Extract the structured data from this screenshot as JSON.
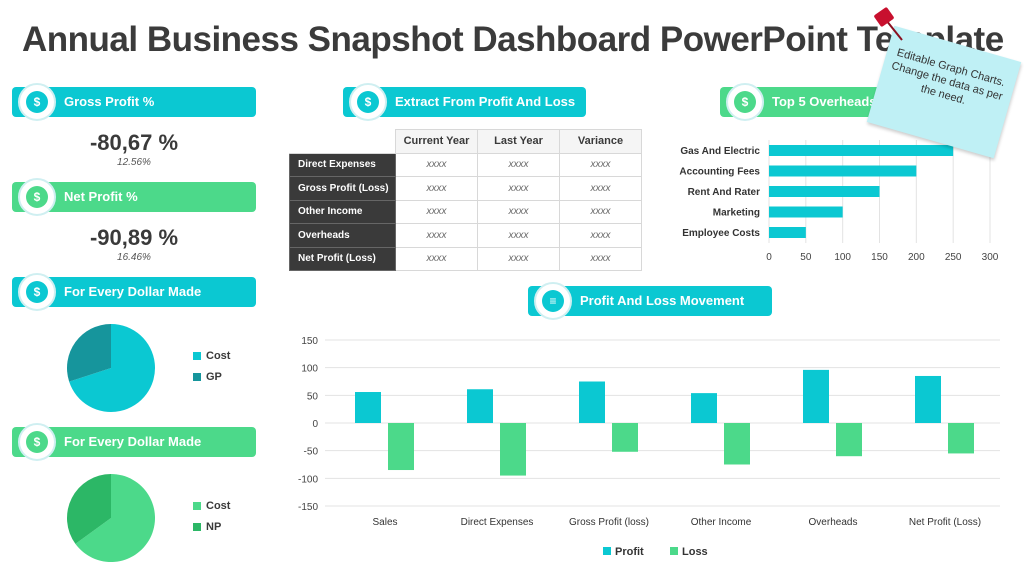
{
  "title": "Annual Business Snapshot Dashboard PowerPoint Template",
  "sticky_note": "Editable Graph Charts. Change the data as per the need.",
  "colors": {
    "cyan": "#0bc8d2",
    "green": "#4cd98a",
    "teal_dark": "#16959c",
    "green_dark": "#2cb766"
  },
  "left": {
    "gross_profit": {
      "label": "Gross Profit %",
      "value": "-80,67 %",
      "sub": "12.56%"
    },
    "net_profit": {
      "label": "Net Profit %",
      "value": "-90,89 %",
      "sub": "16.46%"
    },
    "dollar1": {
      "label": "For Every Dollar Made",
      "legend": [
        "Cost",
        "GP"
      ]
    },
    "dollar2": {
      "label": "For Every Dollar Made",
      "legend": [
        "Cost",
        "NP"
      ]
    }
  },
  "table": {
    "title": "Extract From Profit And Loss",
    "columns": [
      "Current Year",
      "Last Year",
      "Variance"
    ],
    "rows": [
      {
        "label": "Direct Expenses",
        "cells": [
          "xxxx",
          "xxxx",
          "xxxx"
        ]
      },
      {
        "label": "Gross Profit (Loss)",
        "cells": [
          "xxxx",
          "xxxx",
          "xxxx"
        ]
      },
      {
        "label": "Other Income",
        "cells": [
          "xxxx",
          "xxxx",
          "xxxx"
        ]
      },
      {
        "label": "Overheads",
        "cells": [
          "xxxx",
          "xxxx",
          "xxxx"
        ]
      },
      {
        "label": "Net Profit (Loss)",
        "cells": [
          "xxxx",
          "xxxx",
          "xxxx"
        ]
      }
    ]
  },
  "pl_title": "Profit And Loss Movement",
  "chart_data": [
    {
      "type": "bar",
      "orientation": "horizontal",
      "title": "Top 5 Overheads",
      "categories": [
        "Gas And Electric",
        "Accounting Fees",
        "Rent And Rater",
        "Marketing",
        "Employee Costs"
      ],
      "values": [
        250,
        200,
        150,
        100,
        50
      ],
      "xlim": [
        0,
        300
      ],
      "xticks": [
        0,
        50,
        100,
        150,
        200,
        250,
        300
      ]
    },
    {
      "type": "pie",
      "categories": [
        "Cost",
        "GP"
      ],
      "values": [
        70,
        30
      ]
    },
    {
      "type": "pie",
      "categories": [
        "Cost",
        "NP"
      ],
      "values": [
        65,
        35
      ]
    },
    {
      "type": "bar",
      "title": "Profit And Loss Movement",
      "categories": [
        "Sales",
        "Direct Expenses",
        "Gross Profit (loss)",
        "Other Income",
        "Overheads",
        "Net Profit (Loss)"
      ],
      "series": [
        {
          "name": "Profit",
          "values": [
            56,
            61,
            75,
            54,
            96,
            85
          ]
        },
        {
          "name": "Loss",
          "values": [
            -85,
            -95,
            -52,
            -75,
            -60,
            -55
          ]
        }
      ],
      "ylim": [
        -150,
        150
      ],
      "yticks": [
        150,
        100,
        50,
        0,
        -50,
        -100,
        -150
      ],
      "legend": "bottom"
    }
  ]
}
